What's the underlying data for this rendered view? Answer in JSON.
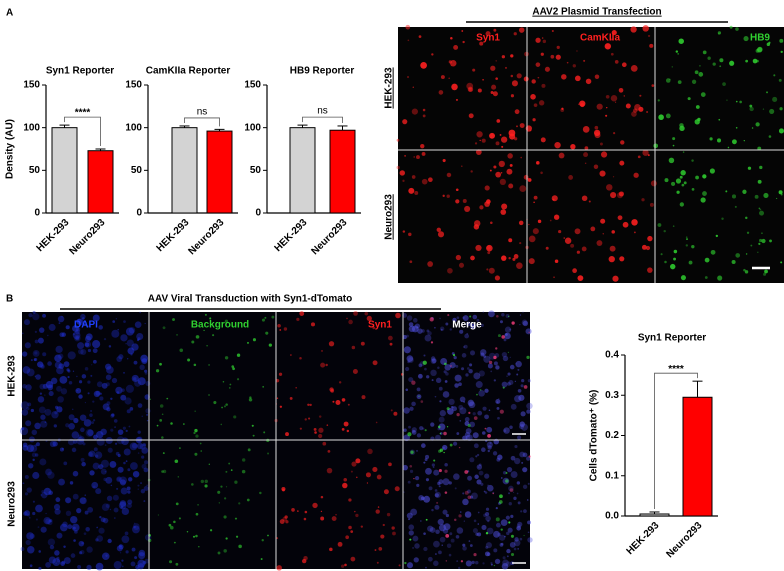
{
  "chart_data": [
    {
      "type": "bar",
      "title": "Syn1 Reporter",
      "ylabel": "Density (AU)",
      "categories": [
        "HEK-293",
        "Neuro293"
      ],
      "values": [
        100,
        73
      ],
      "errors": [
        3,
        2
      ],
      "colors": [
        "#d3d3d3",
        "#ff0000"
      ],
      "ylim": [
        0,
        150
      ],
      "yticks": [
        0,
        50,
        100,
        150
      ],
      "significance": "****"
    },
    {
      "type": "bar",
      "title": "CamKIIa Reporter",
      "categories": [
        "HEK-293",
        "Neuro293"
      ],
      "values": [
        100,
        96
      ],
      "errors": [
        2,
        2
      ],
      "colors": [
        "#d3d3d3",
        "#ff0000"
      ],
      "ylim": [
        0,
        150
      ],
      "yticks": [
        0,
        50,
        100,
        150
      ],
      "significance": "ns"
    },
    {
      "type": "bar",
      "title": "HB9 Reporter",
      "categories": [
        "HEK-293",
        "Neuro293"
      ],
      "values": [
        100,
        97
      ],
      "errors": [
        3,
        5
      ],
      "colors": [
        "#d3d3d3",
        "#ff0000"
      ],
      "ylim": [
        0,
        150
      ],
      "yticks": [
        0,
        50,
        100,
        150
      ],
      "significance": "ns"
    },
    {
      "type": "bar",
      "title": "Syn1 Reporter",
      "ylabel": "Cells dTomato⁺ (%)",
      "categories": [
        "HEK-293",
        "Neuro293"
      ],
      "values": [
        0.005,
        0.295
      ],
      "errors": [
        0.005,
        0.04
      ],
      "colors": [
        "#d3d3d3",
        "#ff0000"
      ],
      "ylim": [
        0,
        0.4
      ],
      "yticks": [
        {
          "value": 0,
          "label": "0.0"
        },
        0.1,
        0.2,
        0.3,
        0.4
      ],
      "significance": "****"
    }
  ],
  "figure": {
    "panel_labels": [
      "A",
      "B"
    ],
    "a_title": "AAV2 Plasmid Transfection",
    "a_columns": [
      "Syn1",
      "CamKIIa",
      "HB9"
    ],
    "a_rows": [
      "HEK-293",
      "Neuro293"
    ],
    "b_title": "AAV Viral Transduction with Syn1-dTomato",
    "b_columns": [
      "DAPI",
      "Background",
      "Syn1",
      "Merge"
    ],
    "b_rows": [
      "HEK-293",
      "Neuro293"
    ]
  }
}
